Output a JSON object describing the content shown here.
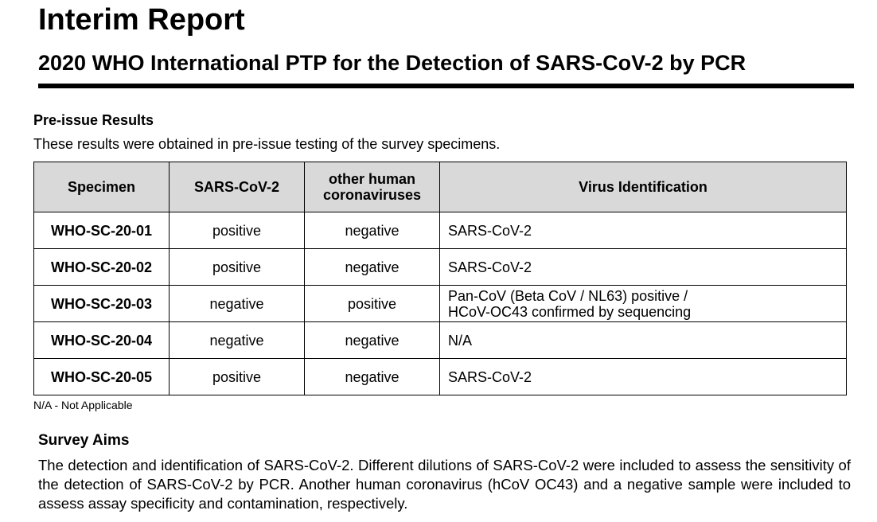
{
  "header": {
    "title": "Interim Report",
    "subtitle": "2020 WHO International PTP for the Detection of SARS-CoV-2 by PCR"
  },
  "results": {
    "heading": "Pre-issue Results",
    "description": "These results were obtained in pre-issue testing of the survey specimens.",
    "table": {
      "columns": [
        "Specimen",
        "SARS-CoV-2",
        "other human coronaviruses",
        "Virus Identification"
      ],
      "rows": [
        [
          "WHO-SC-20-01",
          "positive",
          "negative",
          "SARS-CoV-2"
        ],
        [
          "WHO-SC-20-02",
          "positive",
          "negative",
          "SARS-CoV-2"
        ],
        [
          "WHO-SC-20-03",
          "negative",
          "positive",
          "Pan-CoV (Beta CoV / NL63) positive / HCoV-OC43 confirmed by sequencing"
        ],
        [
          "WHO-SC-20-04",
          "negative",
          "negative",
          "N/A"
        ],
        [
          "WHO-SC-20-05",
          "positive",
          "negative",
          "SARS-CoV-2"
        ]
      ]
    },
    "footnote": "N/A - Not Applicable"
  },
  "aims": {
    "heading": "Survey Aims",
    "text": "The detection and identification of SARS-CoV-2. Different dilutions of SARS-CoV-2 were included to assess the sensitivity of the detection of SARS-CoV-2 by PCR. Another human coronavirus (hCoV OC43) and a negative sample were included to assess assay specificity and contamination, respectively."
  }
}
